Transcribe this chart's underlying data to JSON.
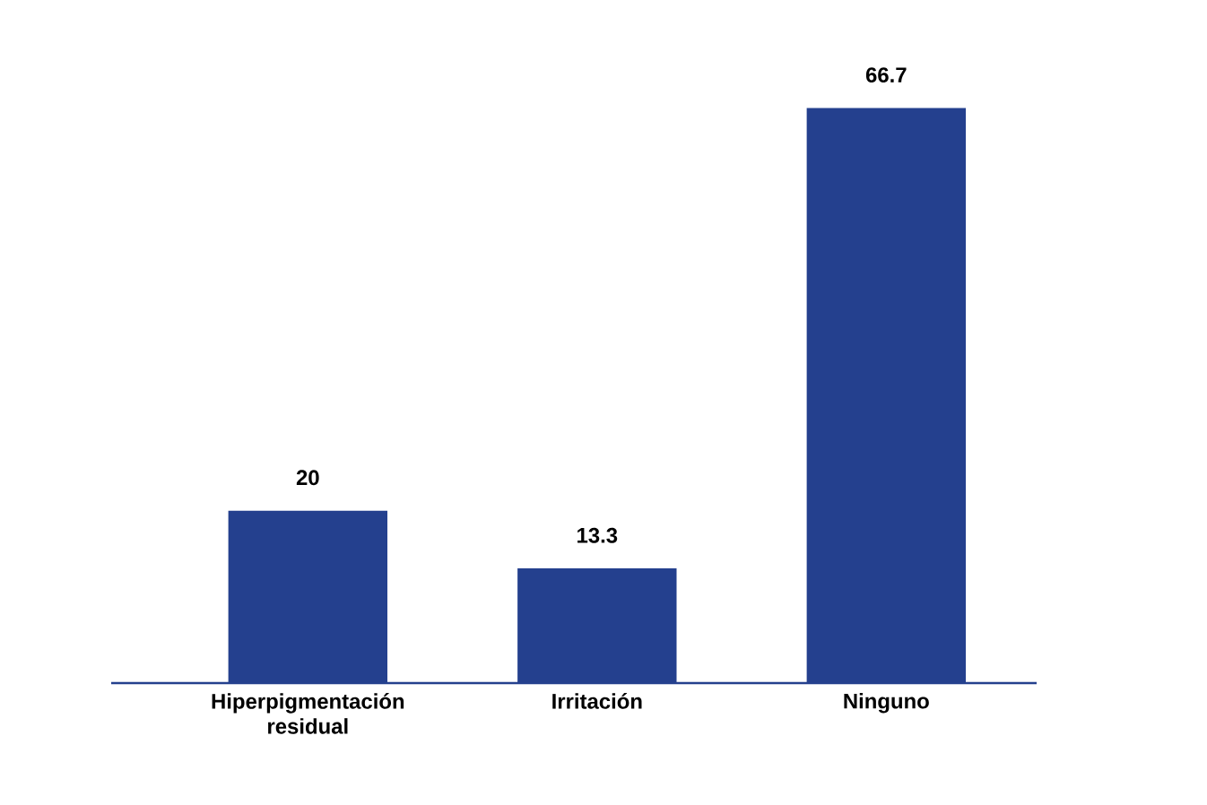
{
  "chart_data": {
    "type": "bar",
    "categories": [
      "Hiperpigmentación residual",
      "Irritación",
      "Ninguno"
    ],
    "values": [
      20,
      13.3,
      66.7
    ],
    "color": "#24408e",
    "data_labels": true
  }
}
